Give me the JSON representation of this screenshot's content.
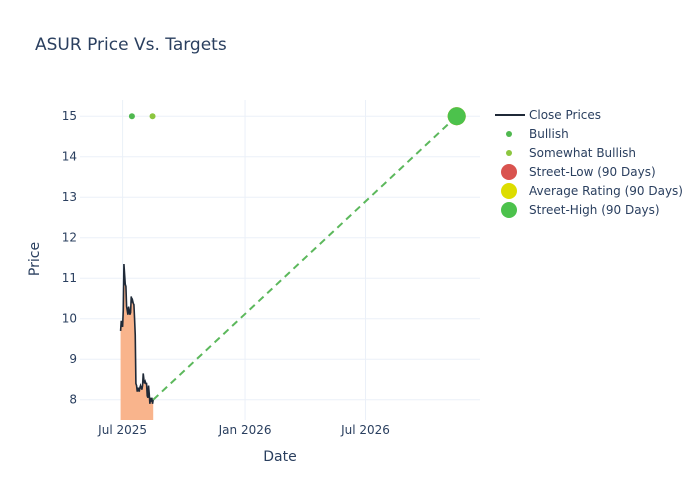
{
  "chart_data": {
    "type": "line",
    "title": "ASUR Price Vs. Targets",
    "xlabel": "Date",
    "ylabel": "Price",
    "xlim": [
      "2025-04-28",
      "2026-12-20"
    ],
    "ylim": [
      7.5,
      15.4
    ],
    "x_ticks": [
      {
        "date": "2025-07-01",
        "label": "Jul 2025"
      },
      {
        "date": "2026-01-01",
        "label": "Jan 2026"
      },
      {
        "date": "2026-07-01",
        "label": "Jul 2026"
      }
    ],
    "y_ticks": [
      8,
      9,
      10,
      11,
      12,
      13,
      14,
      15
    ],
    "grid": true,
    "legend_position": "right",
    "colors": {
      "close": "#1f2937",
      "fill": "#f9b48c",
      "bullish": "#4fb84f",
      "somewhat_bullish": "#8cc63f",
      "street_low": "#d9534f",
      "average": "#dddd00",
      "street_high": "#4cc24c",
      "target_line": "#5cb85c"
    },
    "series": [
      {
        "name": "Close Prices",
        "kind": "line",
        "points": [
          [
            "2025-06-28",
            9.7
          ],
          [
            "2025-06-29",
            9.95
          ],
          [
            "2025-06-30",
            9.85
          ],
          [
            "2025-07-01",
            9.8
          ],
          [
            "2025-07-02",
            10.2
          ],
          [
            "2025-07-03",
            11.35
          ],
          [
            "2025-07-04",
            11.1
          ],
          [
            "2025-07-05",
            10.85
          ],
          [
            "2025-07-06",
            10.8
          ],
          [
            "2025-07-07",
            10.3
          ],
          [
            "2025-07-08",
            10.2
          ],
          [
            "2025-07-09",
            10.1
          ],
          [
            "2025-07-10",
            10.3
          ],
          [
            "2025-07-11",
            10.2
          ],
          [
            "2025-07-12",
            10.1
          ],
          [
            "2025-07-13",
            10.15
          ],
          [
            "2025-07-14",
            10.55
          ],
          [
            "2025-07-15",
            10.4
          ],
          [
            "2025-07-16",
            10.45
          ],
          [
            "2025-07-17",
            10.38
          ],
          [
            "2025-07-18",
            10.35
          ],
          [
            "2025-07-19",
            10.0
          ],
          [
            "2025-07-20",
            9.6
          ],
          [
            "2025-07-21",
            8.4
          ],
          [
            "2025-07-22",
            8.35
          ],
          [
            "2025-07-23",
            8.2
          ],
          [
            "2025-07-24",
            8.3
          ],
          [
            "2025-07-25",
            8.25
          ],
          [
            "2025-07-26",
            8.2
          ],
          [
            "2025-07-27",
            8.3
          ],
          [
            "2025-07-28",
            8.35
          ],
          [
            "2025-07-29",
            8.3
          ],
          [
            "2025-07-30",
            8.25
          ],
          [
            "2025-07-31",
            8.35
          ],
          [
            "2025-08-01",
            8.65
          ],
          [
            "2025-08-02",
            8.5
          ],
          [
            "2025-08-03",
            8.4
          ],
          [
            "2025-08-04",
            8.45
          ],
          [
            "2025-08-05",
            8.4
          ],
          [
            "2025-08-06",
            8.4
          ],
          [
            "2025-08-07",
            8.1
          ],
          [
            "2025-08-08",
            8.05
          ],
          [
            "2025-08-09",
            8.35
          ],
          [
            "2025-08-10",
            8.15
          ],
          [
            "2025-08-11",
            7.9
          ],
          [
            "2025-08-12",
            8.05
          ],
          [
            "2025-08-13",
            7.95
          ],
          [
            "2025-08-14",
            8.05
          ],
          [
            "2025-08-15",
            7.9
          ],
          [
            "2025-08-16",
            8.0
          ]
        ]
      },
      {
        "name": "Bullish",
        "kind": "marker",
        "points": [
          [
            "2025-07-15",
            15
          ]
        ]
      },
      {
        "name": "Somewhat Bullish",
        "kind": "marker",
        "points": [
          [
            "2025-08-15",
            15
          ]
        ]
      },
      {
        "name": "Street-Low (90 Days)",
        "kind": "marker",
        "points": [
          [
            "2026-11-15",
            15
          ]
        ]
      },
      {
        "name": "Average Rating (90 Days)",
        "kind": "marker",
        "points": [
          [
            "2026-11-15",
            15
          ]
        ]
      },
      {
        "name": "Street-High (90 Days)",
        "kind": "marker",
        "points": [
          [
            "2026-11-15",
            15
          ]
        ]
      }
    ],
    "target_line": {
      "from": [
        "2025-08-16",
        8.0
      ],
      "to": [
        "2026-11-15",
        15
      ]
    }
  }
}
